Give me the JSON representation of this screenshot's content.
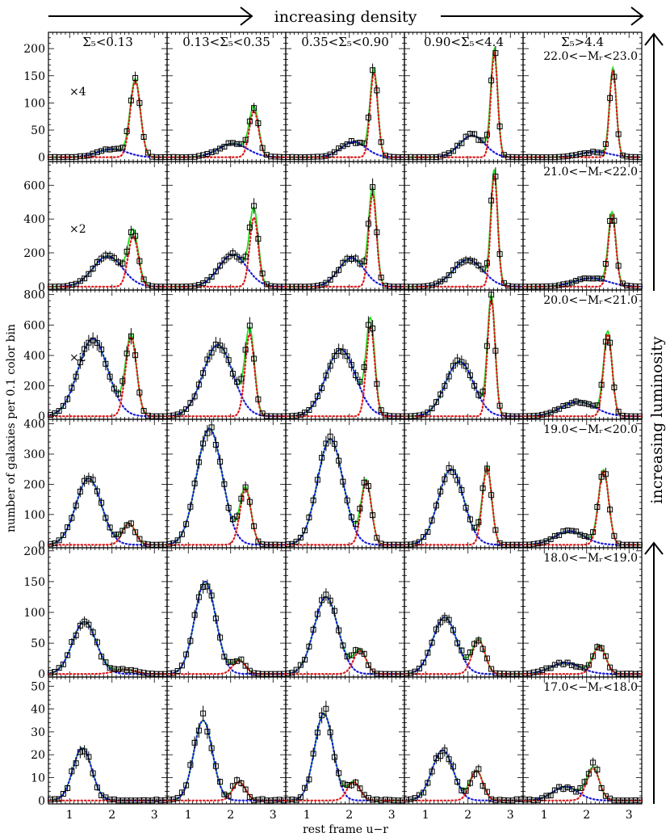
{
  "figure": {
    "top_arrow_label": "increasing density",
    "right_arrow_label": "increasing luminosity",
    "ylabel": "number of galaxies per 0.1 color bin",
    "xlabel": "rest frame u−r"
  },
  "colors": {
    "total_fit": "#22dd22",
    "blue_component": "#1a1ad6",
    "red_component": "#dd1a1a",
    "points": "#000000"
  },
  "chart_data": {
    "type": "scatter",
    "layout": "6 rows x 5 columns",
    "x_range": [
      0.5,
      3.3
    ],
    "x_ticks": [
      1,
      2,
      3
    ],
    "column_labels": [
      "Σ₅<0.13",
      "0.13<Σ₅<0.35",
      "0.35<Σ₅<0.90",
      "0.90<Σ₅<4.4",
      "Σ₅>4.4"
    ],
    "rows": [
      {
        "mag_label": "22.0<−Mᵣ<23.0",
        "scale_note": "×4",
        "ylim": [
          -8,
          230
        ],
        "yticks": [
          0,
          50,
          100,
          150,
          200
        ],
        "panels": [
          {
            "blue": {
              "amp": 15,
              "mu": 2.0,
              "sigma": 0.35
            },
            "red": {
              "amp": 140,
              "mu": 2.55,
              "sigma": 0.12
            }
          },
          {
            "blue": {
              "amp": 25,
              "mu": 2.05,
              "sigma": 0.35
            },
            "red": {
              "amp": 85,
              "mu": 2.55,
              "sigma": 0.11
            }
          },
          {
            "blue": {
              "amp": 28,
              "mu": 2.1,
              "sigma": 0.3
            },
            "red": {
              "amp": 155,
              "mu": 2.58,
              "sigma": 0.09
            }
          },
          {
            "blue": {
              "amp": 40,
              "mu": 2.1,
              "sigma": 0.3
            },
            "red": {
              "amp": 190,
              "mu": 2.62,
              "sigma": 0.08
            }
          },
          {
            "blue": {
              "amp": 10,
              "mu": 2.2,
              "sigma": 0.35
            },
            "red": {
              "amp": 160,
              "mu": 2.62,
              "sigma": 0.08
            }
          }
        ]
      },
      {
        "mag_label": "21.0<−Mᵣ<22.0",
        "scale_note": "×2",
        "ylim": [
          -20,
          740
        ],
        "yticks": [
          0,
          200,
          400,
          600
        ],
        "panels": [
          {
            "blue": {
              "amp": 180,
              "mu": 1.9,
              "sigma": 0.35
            },
            "red": {
              "amp": 300,
              "mu": 2.5,
              "sigma": 0.12
            }
          },
          {
            "blue": {
              "amp": 190,
              "mu": 2.05,
              "sigma": 0.33
            },
            "red": {
              "amp": 410,
              "mu": 2.55,
              "sigma": 0.1
            }
          },
          {
            "blue": {
              "amp": 170,
              "mu": 2.05,
              "sigma": 0.3
            },
            "red": {
              "amp": 550,
              "mu": 2.55,
              "sigma": 0.09
            }
          },
          {
            "blue": {
              "amp": 160,
              "mu": 2.0,
              "sigma": 0.35
            },
            "red": {
              "amp": 660,
              "mu": 2.62,
              "sigma": 0.08
            }
          },
          {
            "blue": {
              "amp": 50,
              "mu": 2.1,
              "sigma": 0.4
            },
            "red": {
              "amp": 420,
              "mu": 2.6,
              "sigma": 0.09
            }
          }
        ]
      },
      {
        "mag_label": "20.0<−Mᵣ<21.0",
        "scale_note": "×2",
        "ylim": [
          -20,
          830
        ],
        "yticks": [
          0,
          200,
          400,
          600,
          800
        ],
        "panels": [
          {
            "blue": {
              "amp": 510,
              "mu": 1.55,
              "sigma": 0.35
            },
            "red": {
              "amp": 520,
              "mu": 2.45,
              "sigma": 0.13
            }
          },
          {
            "blue": {
              "amp": 470,
              "mu": 1.7,
              "sigma": 0.35
            },
            "red": {
              "amp": 540,
              "mu": 2.45,
              "sigma": 0.11
            }
          },
          {
            "blue": {
              "amp": 440,
              "mu": 1.8,
              "sigma": 0.35
            },
            "red": {
              "amp": 590,
              "mu": 2.5,
              "sigma": 0.1
            }
          },
          {
            "blue": {
              "amp": 360,
              "mu": 1.8,
              "sigma": 0.33
            },
            "red": {
              "amp": 770,
              "mu": 2.55,
              "sigma": 0.09
            }
          },
          {
            "blue": {
              "amp": 95,
              "mu": 1.8,
              "sigma": 0.4
            },
            "red": {
              "amp": 540,
              "mu": 2.5,
              "sigma": 0.1
            }
          }
        ]
      },
      {
        "mag_label": "19.0<−Mᵣ<20.0",
        "scale_note": "",
        "ylim": [
          -10,
          415
        ],
        "yticks": [
          0,
          100,
          200,
          300,
          400
        ],
        "panels": [
          {
            "blue": {
              "amp": 220,
              "mu": 1.45,
              "sigma": 0.3
            },
            "red": {
              "amp": 70,
              "mu": 2.4,
              "sigma": 0.15
            }
          },
          {
            "blue": {
              "amp": 385,
              "mu": 1.5,
              "sigma": 0.3
            },
            "red": {
              "amp": 185,
              "mu": 2.35,
              "sigma": 0.13
            }
          },
          {
            "blue": {
              "amp": 350,
              "mu": 1.55,
              "sigma": 0.3
            },
            "red": {
              "amp": 210,
              "mu": 2.4,
              "sigma": 0.12
            }
          },
          {
            "blue": {
              "amp": 250,
              "mu": 1.6,
              "sigma": 0.3
            },
            "red": {
              "amp": 255,
              "mu": 2.45,
              "sigma": 0.11
            }
          },
          {
            "blue": {
              "amp": 45,
              "mu": 1.6,
              "sigma": 0.35
            },
            "red": {
              "amp": 245,
              "mu": 2.4,
              "sigma": 0.12
            }
          }
        ]
      },
      {
        "mag_label": "18.0<−Mᵣ<19.0",
        "scale_note": "",
        "ylim": [
          -5,
          205
        ],
        "yticks": [
          0,
          50,
          100,
          150,
          200
        ],
        "panels": [
          {
            "blue": {
              "amp": 85,
              "mu": 1.35,
              "sigma": 0.28
            },
            "red": {
              "amp": 7,
              "mu": 2.3,
              "sigma": 0.25
            }
          },
          {
            "blue": {
              "amp": 150,
              "mu": 1.4,
              "sigma": 0.25
            },
            "red": {
              "amp": 22,
              "mu": 2.2,
              "sigma": 0.15
            }
          },
          {
            "blue": {
              "amp": 125,
              "mu": 1.45,
              "sigma": 0.28
            },
            "red": {
              "amp": 38,
              "mu": 2.25,
              "sigma": 0.15
            }
          },
          {
            "blue": {
              "amp": 92,
              "mu": 1.45,
              "sigma": 0.28
            },
            "red": {
              "amp": 55,
              "mu": 2.25,
              "sigma": 0.15
            }
          },
          {
            "blue": {
              "amp": 18,
              "mu": 1.5,
              "sigma": 0.35
            },
            "red": {
              "amp": 45,
              "mu": 2.3,
              "sigma": 0.15
            }
          }
        ]
      },
      {
        "mag_label": "17.0<−Mᵣ<18.0",
        "scale_note": "",
        "ylim": [
          -1.5,
          54
        ],
        "yticks": [
          0,
          10,
          20,
          30,
          40,
          50
        ],
        "panels": [
          {
            "blue": {
              "amp": 23,
              "mu": 1.3,
              "sigma": 0.22
            },
            "red": {
              "amp": 0,
              "mu": 2.3,
              "sigma": 0.2
            }
          },
          {
            "blue": {
              "amp": 35,
              "mu": 1.35,
              "sigma": 0.22
            },
            "red": {
              "amp": 8,
              "mu": 2.2,
              "sigma": 0.15
            }
          },
          {
            "blue": {
              "amp": 38,
              "mu": 1.4,
              "sigma": 0.22
            },
            "red": {
              "amp": 8,
              "mu": 2.1,
              "sigma": 0.15
            }
          },
          {
            "blue": {
              "amp": 22,
              "mu": 1.4,
              "sigma": 0.25
            },
            "red": {
              "amp": 13,
              "mu": 2.2,
              "sigma": 0.15
            }
          },
          {
            "blue": {
              "amp": 6,
              "mu": 1.5,
              "sigma": 0.3
            },
            "red": {
              "amp": 14,
              "mu": 2.15,
              "sigma": 0.15
            }
          }
        ]
      }
    ]
  }
}
